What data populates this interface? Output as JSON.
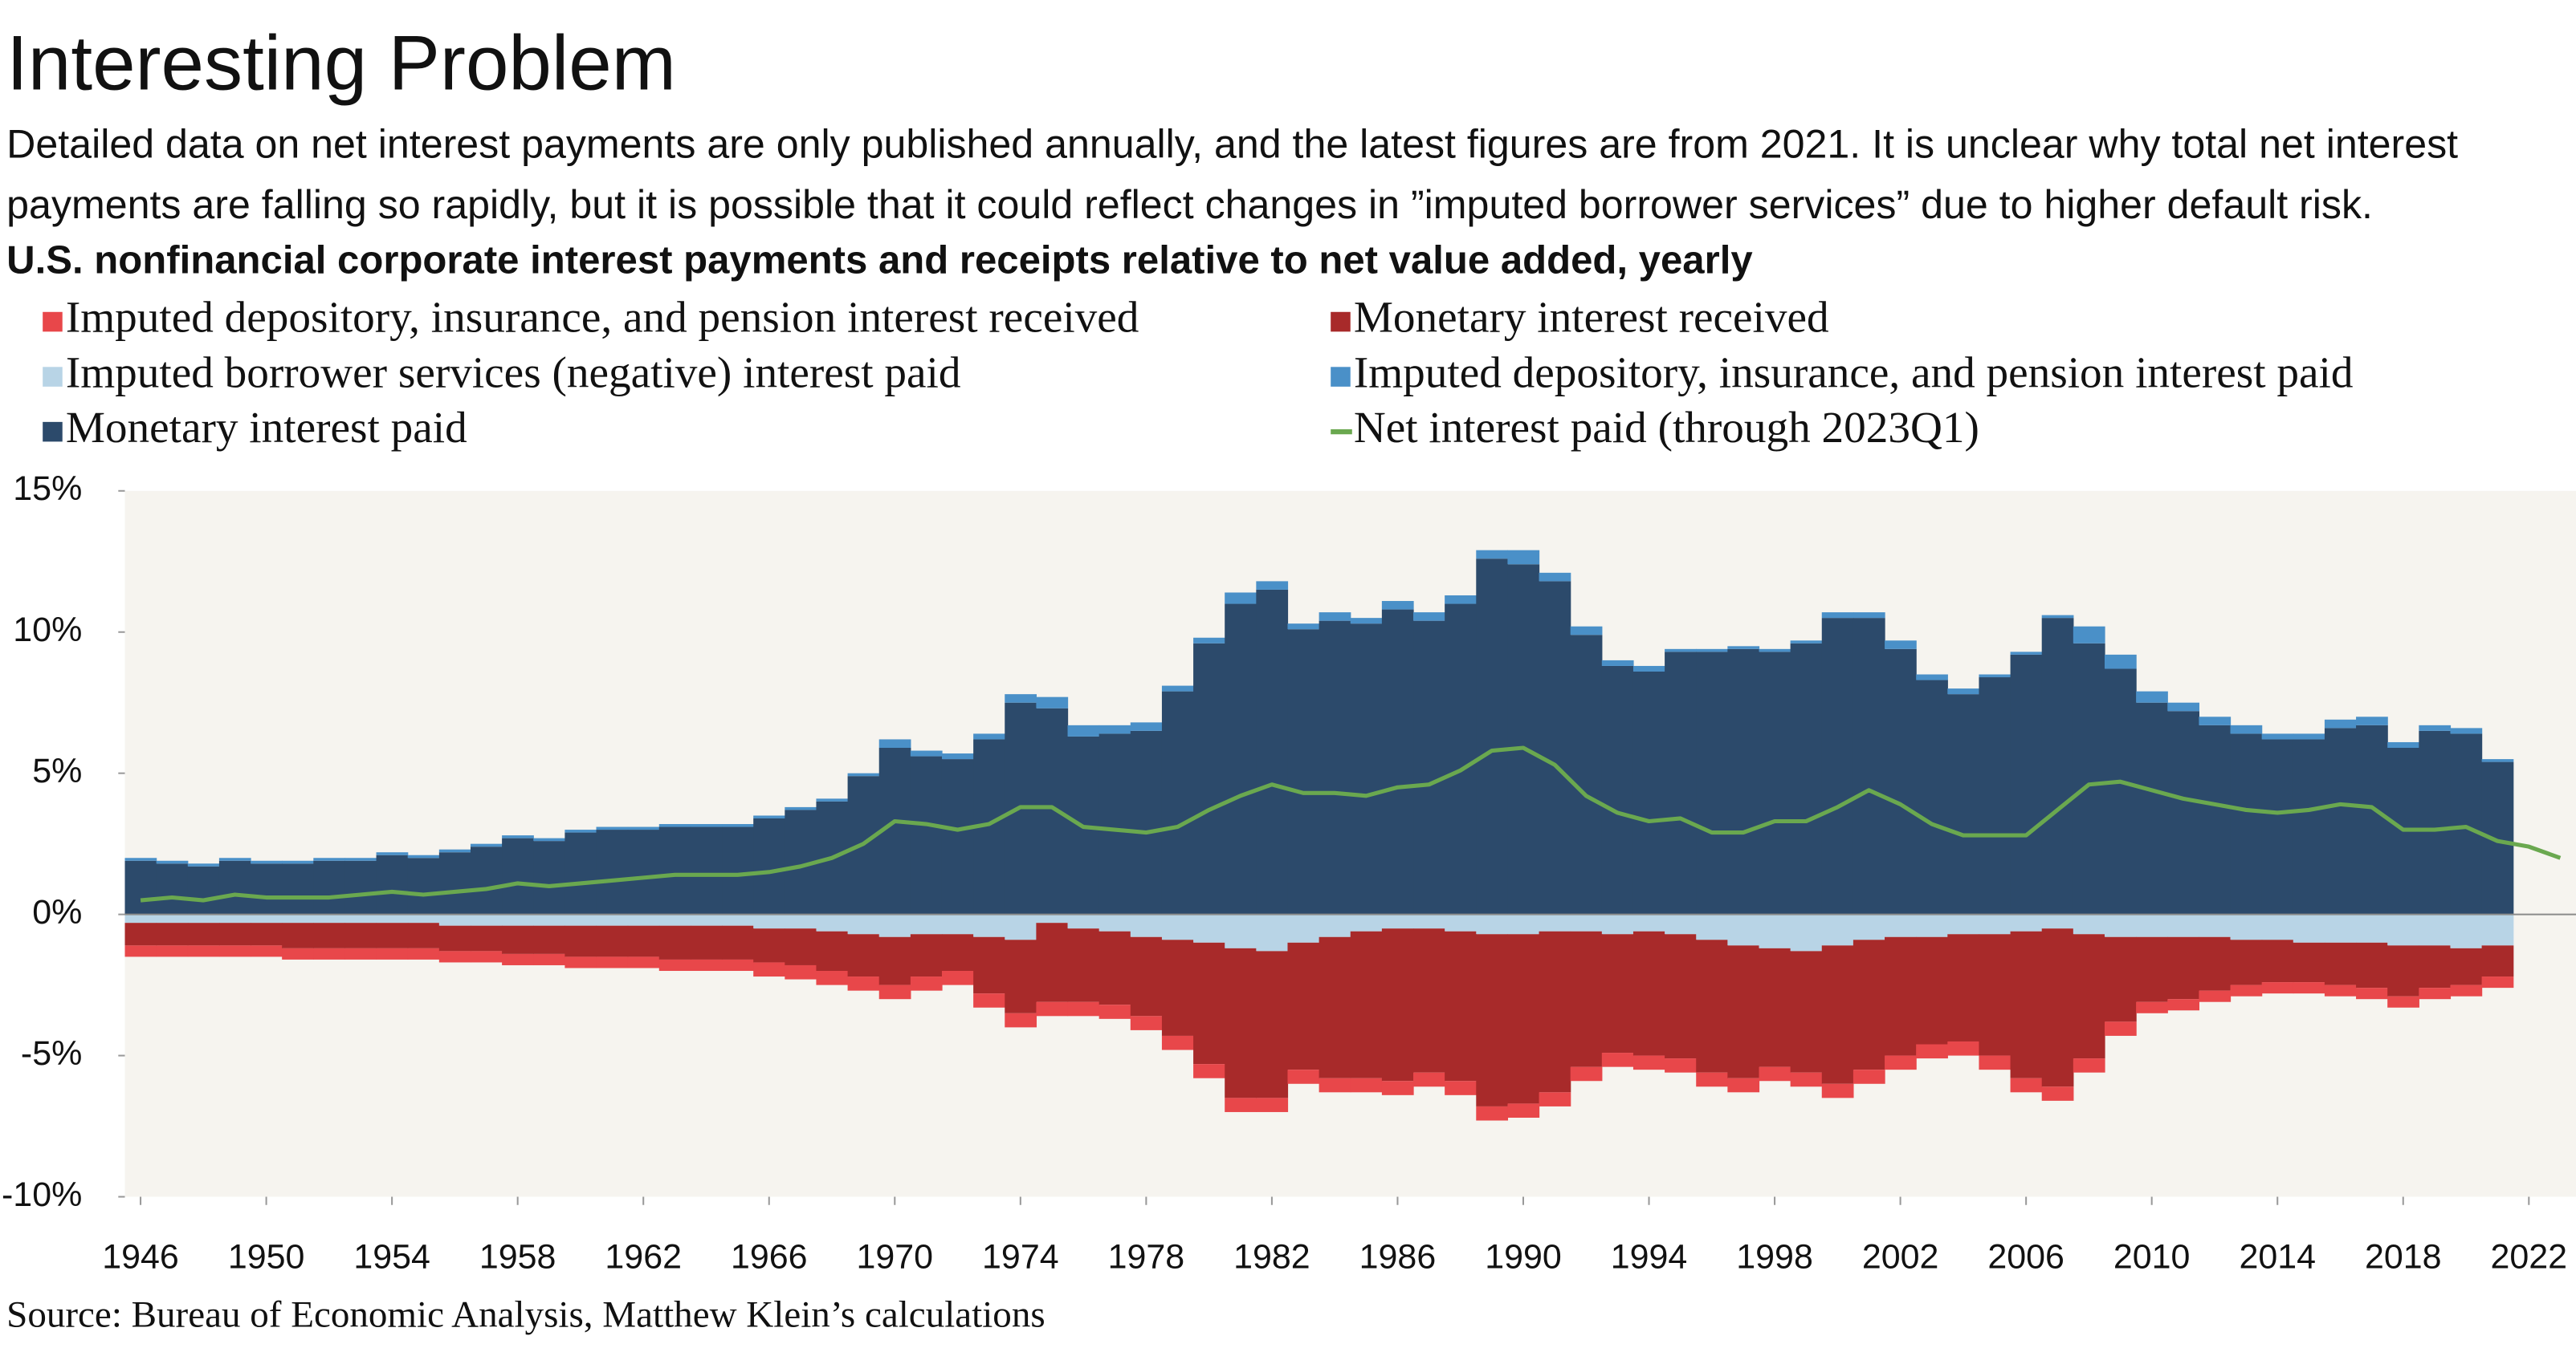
{
  "chart_data": {
    "type": "bar",
    "stacked": true,
    "title": "Interesting Problem",
    "description": "Detailed data on net interest payments are only published annually, and the latest figures are from 2021. It is unclear why total net interest payments are falling so rapidly, but it is possible that it could reflect changes in ”imputed borrower services” due to higher default risk.",
    "subtitle": "U.S. nonfinancial corporate interest payments and receipts relative to net value added, yearly",
    "source": "Source: Bureau of Economic Analysis, Matthew Klein’s calculations",
    "x": [
      1946,
      1947,
      1948,
      1949,
      1950,
      1951,
      1952,
      1953,
      1954,
      1955,
      1956,
      1957,
      1958,
      1959,
      1960,
      1961,
      1962,
      1963,
      1964,
      1965,
      1966,
      1967,
      1968,
      1969,
      1970,
      1971,
      1972,
      1973,
      1974,
      1975,
      1976,
      1977,
      1978,
      1979,
      1980,
      1981,
      1982,
      1983,
      1984,
      1985,
      1986,
      1987,
      1988,
      1989,
      1990,
      1991,
      1992,
      1993,
      1994,
      1995,
      1996,
      1997,
      1998,
      1999,
      2000,
      2001,
      2002,
      2003,
      2004,
      2005,
      2006,
      2007,
      2008,
      2009,
      2010,
      2011,
      2012,
      2013,
      2014,
      2015,
      2016,
      2017,
      2018,
      2019,
      2020,
      2021
    ],
    "series": [
      {
        "name": "Imputed depository, insurance, and pension interest received",
        "color": "#e8474a",
        "values": [
          -0.4,
          -0.4,
          -0.4,
          -0.4,
          -0.4,
          -0.4,
          -0.4,
          -0.4,
          -0.4,
          -0.4,
          -0.4,
          -0.4,
          -0.4,
          -0.4,
          -0.4,
          -0.4,
          -0.4,
          -0.4,
          -0.4,
          -0.4,
          -0.5,
          -0.5,
          -0.5,
          -0.5,
          -0.5,
          -0.5,
          -0.5,
          -0.5,
          -0.5,
          -0.5,
          -0.5,
          -0.5,
          -0.5,
          -0.5,
          -0.5,
          -0.5,
          -0.5,
          -0.5,
          -0.5,
          -0.5,
          -0.5,
          -0.5,
          -0.5,
          -0.5,
          -0.5,
          -0.5,
          -0.5,
          -0.5,
          -0.5,
          -0.5,
          -0.5,
          -0.5,
          -0.5,
          -0.5,
          -0.5,
          -0.5,
          -0.5,
          -0.5,
          -0.5,
          -0.5,
          -0.5,
          -0.5,
          -0.5,
          -0.5,
          -0.4,
          -0.4,
          -0.4,
          -0.4,
          -0.4,
          -0.4,
          -0.4,
          -0.4,
          -0.4,
          -0.4,
          -0.4,
          -0.4
        ]
      },
      {
        "name": "Monetary interest received",
        "color": "#a82a2a",
        "values": [
          -0.8,
          -0.8,
          -0.8,
          -0.8,
          -0.8,
          -0.9,
          -0.9,
          -0.9,
          -0.9,
          -0.9,
          -0.9,
          -0.9,
          -1.0,
          -1.0,
          -1.1,
          -1.1,
          -1.1,
          -1.2,
          -1.2,
          -1.2,
          -1.2,
          -1.3,
          -1.4,
          -1.5,
          -1.7,
          -1.5,
          -1.3,
          -2.0,
          -2.6,
          -2.8,
          -2.6,
          -2.6,
          -2.8,
          -3.4,
          -4.3,
          -5.3,
          -5.2,
          -4.5,
          -5.0,
          -5.2,
          -5.4,
          -5.1,
          -5.3,
          -6.1,
          -6.0,
          -5.7,
          -4.8,
          -4.2,
          -4.4,
          -4.4,
          -4.7,
          -4.7,
          -4.2,
          -4.3,
          -4.9,
          -4.6,
          -4.2,
          -3.8,
          -3.8,
          -4.3,
          -5.2,
          -5.6,
          -4.4,
          -3.0,
          -2.3,
          -2.2,
          -1.9,
          -1.6,
          -1.5,
          -1.4,
          -1.5,
          -1.6,
          -1.8,
          -1.5,
          -1.3,
          -1.1
        ]
      },
      {
        "name": "Imputed borrower services (negative) interest paid",
        "color": "#b8d4e6",
        "values": [
          -0.3,
          -0.3,
          -0.3,
          -0.3,
          -0.3,
          -0.3,
          -0.3,
          -0.3,
          -0.3,
          -0.3,
          -0.4,
          -0.4,
          -0.4,
          -0.4,
          -0.4,
          -0.4,
          -0.4,
          -0.4,
          -0.4,
          -0.4,
          -0.5,
          -0.5,
          -0.6,
          -0.7,
          -0.8,
          -0.7,
          -0.7,
          -0.8,
          -0.9,
          -0.3,
          -0.5,
          -0.6,
          -0.8,
          -0.9,
          -1.0,
          -1.2,
          -1.3,
          -1.0,
          -0.8,
          -0.6,
          -0.5,
          -0.5,
          -0.6,
          -0.7,
          -0.7,
          -0.6,
          -0.6,
          -0.7,
          -0.6,
          -0.7,
          -0.9,
          -1.1,
          -1.2,
          -1.3,
          -1.1,
          -0.9,
          -0.8,
          -0.8,
          -0.7,
          -0.7,
          -0.6,
          -0.5,
          -0.7,
          -0.8,
          -0.8,
          -0.8,
          -0.8,
          -0.9,
          -0.9,
          -1.0,
          -1.0,
          -1.0,
          -1.1,
          -1.1,
          -1.2,
          -1.1
        ]
      },
      {
        "name": "Imputed depository, insurance, and pension interest paid",
        "color": "#4a90c8",
        "values": [
          0.1,
          0.1,
          0.1,
          0.1,
          0.1,
          0.1,
          0.1,
          0.1,
          0.1,
          0.1,
          0.1,
          0.1,
          0.1,
          0.1,
          0.1,
          0.1,
          0.1,
          0.1,
          0.1,
          0.1,
          0.1,
          0.1,
          0.1,
          0.1,
          0.3,
          0.2,
          0.2,
          0.2,
          0.3,
          0.4,
          0.4,
          0.3,
          0.3,
          0.2,
          0.2,
          0.4,
          0.3,
          0.2,
          0.3,
          0.2,
          0.3,
          0.3,
          0.3,
          0.3,
          0.5,
          0.3,
          0.3,
          0.2,
          0.2,
          0.1,
          0.1,
          0.1,
          0.1,
          0.1,
          0.2,
          0.2,
          0.3,
          0.2,
          0.2,
          0.1,
          0.1,
          0.1,
          0.6,
          0.5,
          0.4,
          0.3,
          0.3,
          0.3,
          0.2,
          0.2,
          0.3,
          0.3,
          0.2,
          0.2,
          0.2,
          0.1
        ]
      },
      {
        "name": "Monetary interest paid",
        "color": "#2c4a6b",
        "values": [
          1.9,
          1.8,
          1.7,
          1.9,
          1.8,
          1.8,
          1.9,
          1.9,
          2.1,
          2.0,
          2.2,
          2.4,
          2.7,
          2.6,
          2.9,
          3.0,
          3.0,
          3.1,
          3.1,
          3.1,
          3.4,
          3.7,
          4.0,
          4.9,
          5.9,
          5.6,
          5.5,
          6.2,
          7.5,
          7.3,
          6.3,
          6.4,
          6.5,
          7.9,
          9.6,
          11.0,
          11.5,
          10.1,
          10.4,
          10.3,
          10.8,
          10.4,
          11.0,
          12.6,
          12.4,
          11.8,
          9.9,
          8.8,
          8.6,
          9.3,
          9.3,
          9.4,
          9.3,
          9.6,
          10.5,
          10.5,
          9.4,
          8.3,
          7.8,
          8.4,
          9.2,
          10.5,
          9.6,
          8.7,
          7.5,
          7.2,
          6.7,
          6.4,
          6.2,
          6.2,
          6.6,
          6.7,
          5.9,
          6.5,
          6.4,
          5.4
        ]
      },
      {
        "name": "Net interest paid (through 2023Q1)",
        "color": "#6aa84f",
        "type": "line",
        "x": [
          1946,
          1947,
          1948,
          1949,
          1950,
          1951,
          1952,
          1953,
          1954,
          1955,
          1956,
          1957,
          1958,
          1959,
          1960,
          1961,
          1962,
          1963,
          1964,
          1965,
          1966,
          1967,
          1968,
          1969,
          1970,
          1971,
          1972,
          1973,
          1974,
          1975,
          1976,
          1977,
          1978,
          1979,
          1980,
          1981,
          1982,
          1983,
          1984,
          1985,
          1986,
          1987,
          1988,
          1989,
          1990,
          1991,
          1992,
          1993,
          1994,
          1995,
          1996,
          1997,
          1998,
          1999,
          2000,
          2001,
          2002,
          2003,
          2004,
          2005,
          2006,
          2007,
          2008,
          2009,
          2010,
          2011,
          2012,
          2013,
          2014,
          2015,
          2016,
          2017,
          2018,
          2019,
          2020,
          2021,
          2022,
          2023
        ],
        "values": [
          0.5,
          0.6,
          0.5,
          0.7,
          0.6,
          0.6,
          0.6,
          0.7,
          0.8,
          0.7,
          0.8,
          0.9,
          1.1,
          1.0,
          1.1,
          1.2,
          1.3,
          1.4,
          1.4,
          1.4,
          1.5,
          1.7,
          2.0,
          2.5,
          3.3,
          3.2,
          3.0,
          3.2,
          3.8,
          3.8,
          3.1,
          3.0,
          2.9,
          3.1,
          3.7,
          4.2,
          4.6,
          4.3,
          4.3,
          4.2,
          4.5,
          4.6,
          5.1,
          5.8,
          5.9,
          5.3,
          4.2,
          3.6,
          3.3,
          3.4,
          2.9,
          2.9,
          3.3,
          3.3,
          3.8,
          4.4,
          3.9,
          3.2,
          2.8,
          2.8,
          2.8,
          3.7,
          4.6,
          4.7,
          4.4,
          4.1,
          3.9,
          3.7,
          3.6,
          3.7,
          3.9,
          3.8,
          3.0,
          3.0,
          3.1,
          2.6,
          2.4,
          2.0
        ]
      }
    ],
    "xlim": [
      1945.5,
      2023.5
    ],
    "xticks": [
      1946,
      1950,
      1954,
      1958,
      1962,
      1966,
      1970,
      1974,
      1978,
      1982,
      1986,
      1990,
      1994,
      1998,
      2002,
      2006,
      2010,
      2014,
      2018,
      2022
    ],
    "ylim": [
      -10,
      15
    ],
    "yticks": [
      {
        "value": -10,
        "label": "-10%"
      },
      {
        "value": -5,
        "label": "-5%"
      },
      {
        "value": 0,
        "label": "0%"
      },
      {
        "value": 5,
        "label": "5%"
      },
      {
        "value": 10,
        "label": "10%"
      },
      {
        "value": 15,
        "label": "15%"
      }
    ],
    "grid": false
  }
}
